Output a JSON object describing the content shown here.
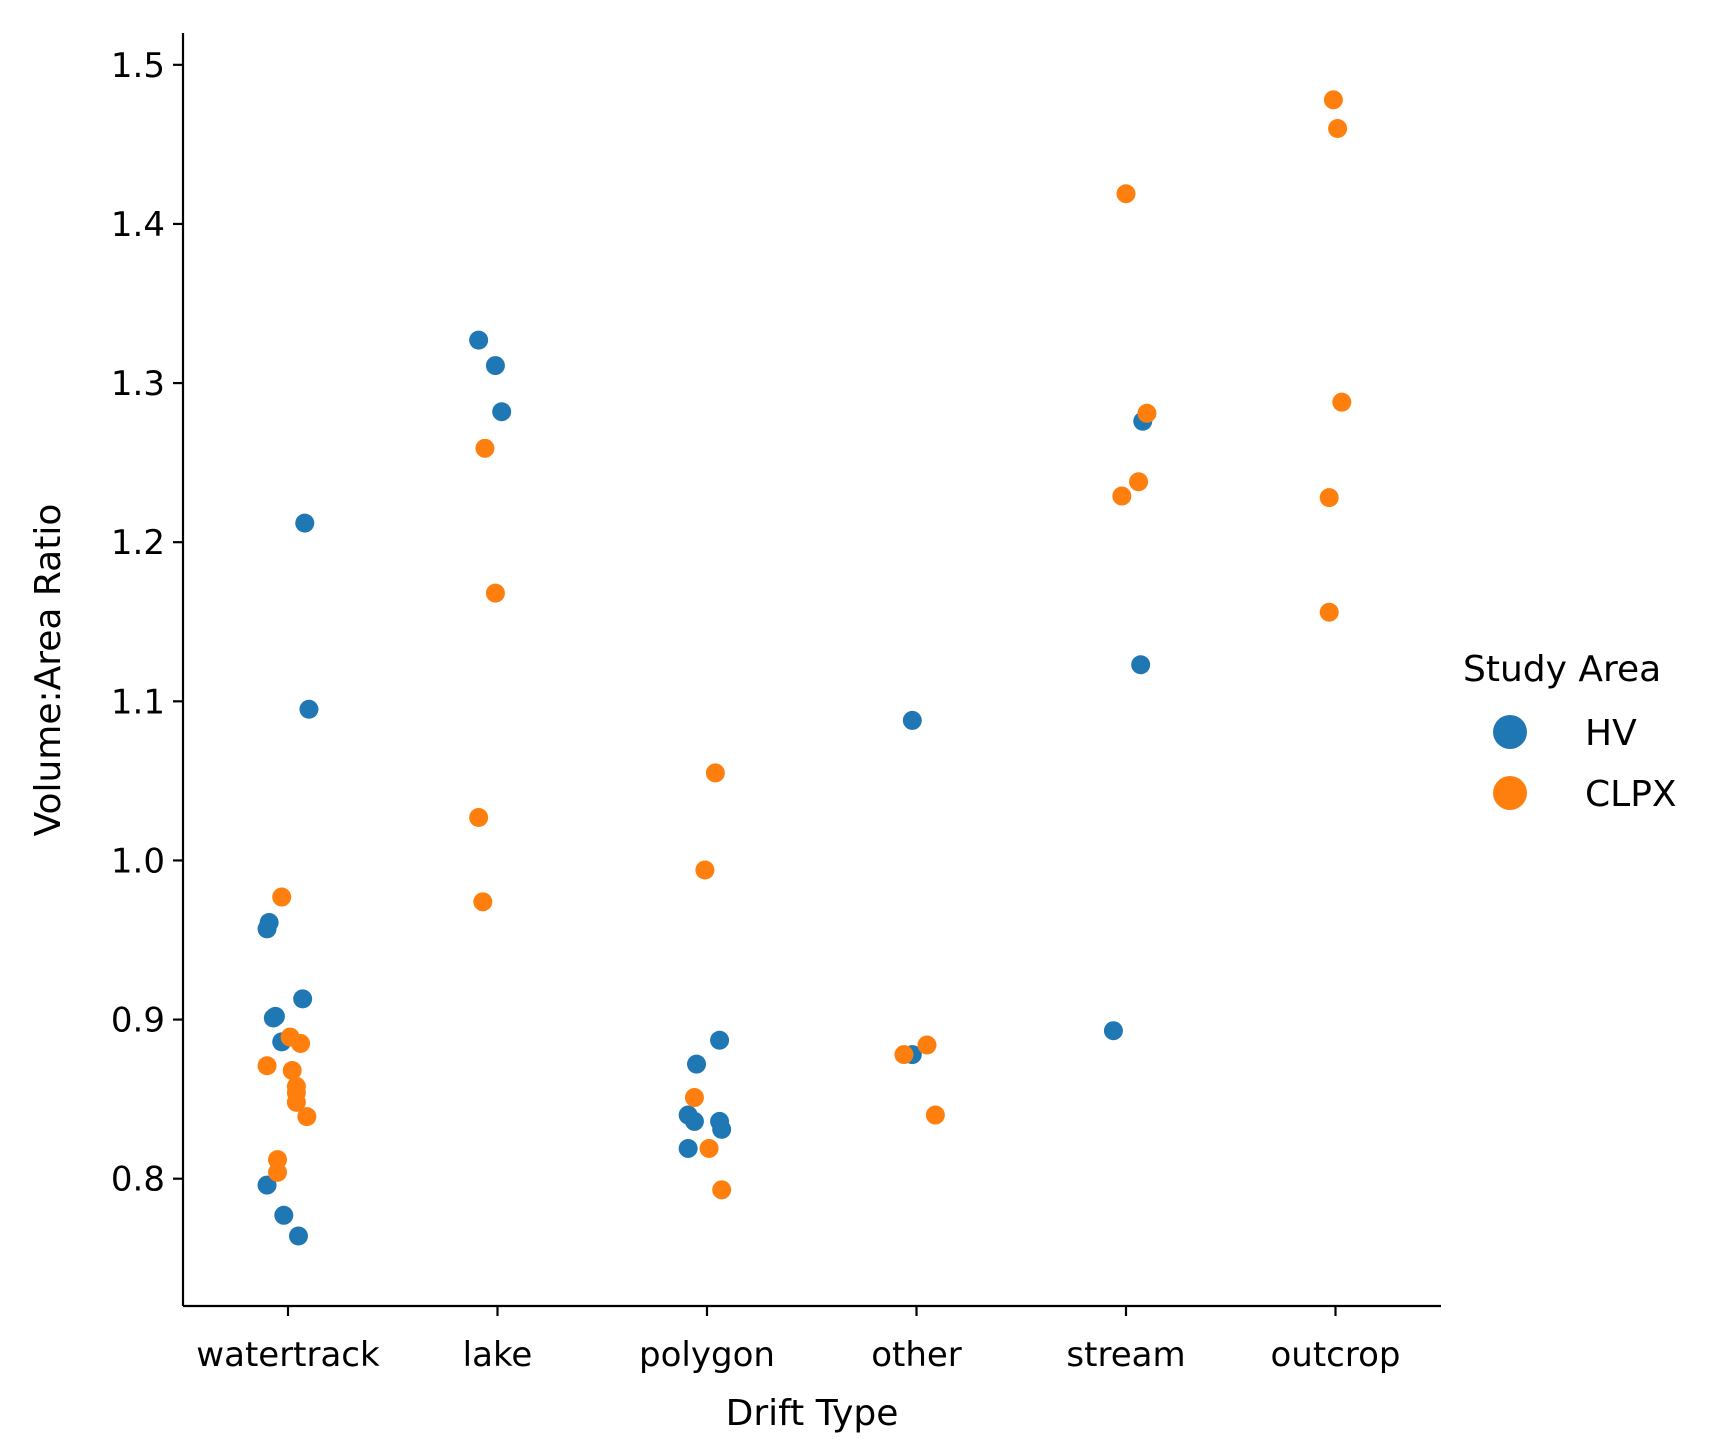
{
  "chart_data": {
    "type": "scatter",
    "xlabel": "Drift Type",
    "ylabel": "Volume:Area Ratio",
    "categories": [
      "watertrack",
      "lake",
      "polygon",
      "other",
      "stream",
      "outcrop"
    ],
    "yticks": [
      "0.8",
      "0.9",
      "1.0",
      "1.1",
      "1.2",
      "1.3",
      "1.4",
      "1.5"
    ],
    "ylim": [
      0.72,
      1.52
    ],
    "grid": false,
    "legend": {
      "title": "Study Area",
      "placement": "right"
    },
    "series": [
      {
        "name": "HV",
        "color": "#1f77b4",
        "points": [
          {
            "category": "watertrack",
            "jitter": -0.1,
            "y": 0.957
          },
          {
            "category": "watertrack",
            "jitter": -0.09,
            "y": 0.961
          },
          {
            "category": "watertrack",
            "jitter": -0.06,
            "y": 0.902
          },
          {
            "category": "watertrack",
            "jitter": -0.07,
            "y": 0.901
          },
          {
            "category": "watertrack",
            "jitter": -0.03,
            "y": 0.886
          },
          {
            "category": "watertrack",
            "jitter": 0.07,
            "y": 0.913
          },
          {
            "category": "watertrack",
            "jitter": 0.08,
            "y": 1.212
          },
          {
            "category": "watertrack",
            "jitter": 0.1,
            "y": 1.095
          },
          {
            "category": "watertrack",
            "jitter": -0.1,
            "y": 0.796
          },
          {
            "category": "watertrack",
            "jitter": -0.02,
            "y": 0.777
          },
          {
            "category": "watertrack",
            "jitter": 0.05,
            "y": 0.764
          },
          {
            "category": "lake",
            "jitter": -0.09,
            "y": 1.327
          },
          {
            "category": "lake",
            "jitter": -0.01,
            "y": 1.311
          },
          {
            "category": "lake",
            "jitter": 0.02,
            "y": 1.282
          },
          {
            "category": "polygon",
            "jitter": -0.05,
            "y": 0.872
          },
          {
            "category": "polygon",
            "jitter": 0.06,
            "y": 0.887
          },
          {
            "category": "polygon",
            "jitter": -0.09,
            "y": 0.84
          },
          {
            "category": "polygon",
            "jitter": -0.06,
            "y": 0.836
          },
          {
            "category": "polygon",
            "jitter": 0.06,
            "y": 0.836
          },
          {
            "category": "polygon",
            "jitter": 0.07,
            "y": 0.831
          },
          {
            "category": "polygon",
            "jitter": -0.09,
            "y": 0.819
          },
          {
            "category": "other",
            "jitter": -0.02,
            "y": 1.088
          },
          {
            "category": "other",
            "jitter": -0.02,
            "y": 0.878
          },
          {
            "category": "stream",
            "jitter": -0.06,
            "y": 0.893
          },
          {
            "category": "stream",
            "jitter": 0.08,
            "y": 1.276
          },
          {
            "category": "stream",
            "jitter": 0.07,
            "y": 1.123
          }
        ]
      },
      {
        "name": "CLPX",
        "color": "#ff7f0e",
        "points": [
          {
            "category": "watertrack",
            "jitter": -0.03,
            "y": 0.977
          },
          {
            "category": "watertrack",
            "jitter": 0.01,
            "y": 0.889
          },
          {
            "category": "watertrack",
            "jitter": 0.06,
            "y": 0.885
          },
          {
            "category": "watertrack",
            "jitter": -0.1,
            "y": 0.871
          },
          {
            "category": "watertrack",
            "jitter": 0.02,
            "y": 0.868
          },
          {
            "category": "watertrack",
            "jitter": 0.04,
            "y": 0.858
          },
          {
            "category": "watertrack",
            "jitter": 0.04,
            "y": 0.854
          },
          {
            "category": "watertrack",
            "jitter": 0.04,
            "y": 0.848
          },
          {
            "category": "watertrack",
            "jitter": 0.09,
            "y": 0.839
          },
          {
            "category": "watertrack",
            "jitter": -0.05,
            "y": 0.812
          },
          {
            "category": "watertrack",
            "jitter": -0.05,
            "y": 0.804
          },
          {
            "category": "lake",
            "jitter": -0.06,
            "y": 1.259
          },
          {
            "category": "lake",
            "jitter": -0.01,
            "y": 1.168
          },
          {
            "category": "lake",
            "jitter": -0.09,
            "y": 1.027
          },
          {
            "category": "lake",
            "jitter": -0.07,
            "y": 0.974
          },
          {
            "category": "polygon",
            "jitter": 0.04,
            "y": 1.055
          },
          {
            "category": "polygon",
            "jitter": -0.01,
            "y": 0.994
          },
          {
            "category": "polygon",
            "jitter": -0.06,
            "y": 0.851
          },
          {
            "category": "polygon",
            "jitter": 0.01,
            "y": 0.819
          },
          {
            "category": "polygon",
            "jitter": 0.07,
            "y": 0.793
          },
          {
            "category": "other",
            "jitter": 0.05,
            "y": 0.884
          },
          {
            "category": "other",
            "jitter": -0.06,
            "y": 0.878
          },
          {
            "category": "other",
            "jitter": 0.09,
            "y": 0.84
          },
          {
            "category": "stream",
            "jitter": 0.0,
            "y": 1.419
          },
          {
            "category": "stream",
            "jitter": 0.1,
            "y": 1.281
          },
          {
            "category": "stream",
            "jitter": 0.06,
            "y": 1.238
          },
          {
            "category": "stream",
            "jitter": -0.02,
            "y": 1.229
          },
          {
            "category": "outcrop",
            "jitter": -0.01,
            "y": 1.478
          },
          {
            "category": "outcrop",
            "jitter": 0.01,
            "y": 1.46
          },
          {
            "category": "outcrop",
            "jitter": 0.03,
            "y": 1.288
          },
          {
            "category": "outcrop",
            "jitter": -0.03,
            "y": 1.228
          },
          {
            "category": "outcrop",
            "jitter": -0.03,
            "y": 1.156
          }
        ]
      }
    ]
  }
}
